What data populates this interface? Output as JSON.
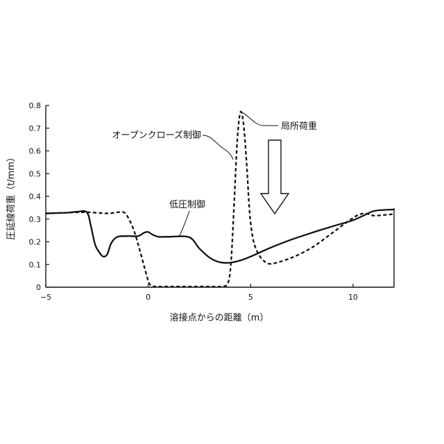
{
  "chart_data": {
    "type": "line",
    "title": "",
    "xlabel": "溶接点からの距離（m）",
    "ylabel": "圧延線荷重（t/mm）",
    "xlim": [
      -5,
      12
    ],
    "ylim": [
      0,
      0.8
    ],
    "xticks": [
      -5,
      0,
      5,
      10
    ],
    "xtick_labels": [
      "−5",
      "0",
      "5",
      "10"
    ],
    "yticks": [
      0,
      0.1,
      0.2,
      0.3,
      0.4,
      0.5,
      0.6,
      0.7,
      0.8
    ],
    "ytick_labels": [
      "0",
      "0.1",
      "0.2",
      "0.3",
      "0.4",
      "0.5",
      "0.6",
      "0.7",
      "0.8"
    ],
    "grid": false,
    "series": [
      {
        "name": "低圧制御",
        "style": "solid",
        "color": "#111111",
        "x": [
          -5,
          -4,
          -3.5,
          -3,
          -2.8,
          -2.6,
          -2.4,
          -2.2,
          -2.0,
          -1.8,
          -1.5,
          -1.0,
          -0.5,
          -0.2,
          0,
          0.2,
          0.5,
          1.0,
          2.0,
          2.5,
          3.0,
          3.5,
          4.0,
          4.5,
          5.0,
          6.0,
          7.0,
          8.0,
          9.0,
          10.0,
          10.5,
          11.0,
          11.5,
          12.0
        ],
        "y": [
          0.325,
          0.328,
          0.332,
          0.33,
          0.27,
          0.19,
          0.155,
          0.135,
          0.145,
          0.195,
          0.222,
          0.225,
          0.225,
          0.24,
          0.243,
          0.232,
          0.222,
          0.222,
          0.22,
          0.17,
          0.13,
          0.11,
          0.108,
          0.118,
          0.135,
          0.175,
          0.21,
          0.24,
          0.268,
          0.295,
          0.315,
          0.335,
          0.34,
          0.342
        ]
      },
      {
        "name": "オープンクローズ制御",
        "style": "dashed",
        "color": "#111111",
        "x": [
          -5,
          -4,
          -3,
          -2,
          -1.5,
          -1.2,
          -1.0,
          -0.7,
          -0.4,
          -0.1,
          0.1,
          0.5,
          1,
          2,
          3,
          3.6,
          3.9,
          4.05,
          4.2,
          4.35,
          4.5,
          4.65,
          4.8,
          4.95,
          5.1,
          5.3,
          5.6,
          6.0,
          7.0,
          8.0,
          9.0,
          9.6,
          10.0,
          10.3,
          10.6,
          11.0,
          11.5,
          12.0
        ],
        "y": [
          0.325,
          0.328,
          0.33,
          0.325,
          0.33,
          0.33,
          0.31,
          0.25,
          0.16,
          0.06,
          0.01,
          0.003,
          0.003,
          0.003,
          0.003,
          0.004,
          0.02,
          0.12,
          0.38,
          0.65,
          0.77,
          0.72,
          0.55,
          0.33,
          0.22,
          0.16,
          0.12,
          0.103,
          0.13,
          0.175,
          0.24,
          0.28,
          0.305,
          0.32,
          0.325,
          0.315,
          0.318,
          0.322
        ]
      }
    ],
    "annotations": [
      {
        "text": "局所荷重",
        "x": 4.5,
        "y": 0.77,
        "kind": "label-leader"
      },
      {
        "text": "オープンクローズ制御",
        "x": 4.1,
        "y": 0.6,
        "kind": "label-leader"
      },
      {
        "text": "低圧制御",
        "x": 1.4,
        "y": 0.22,
        "kind": "label-leader"
      },
      {
        "text": "",
        "kind": "hollow-down-arrow",
        "x": 6.2,
        "y_from": 0.65,
        "y_to": 0.33
      }
    ]
  }
}
